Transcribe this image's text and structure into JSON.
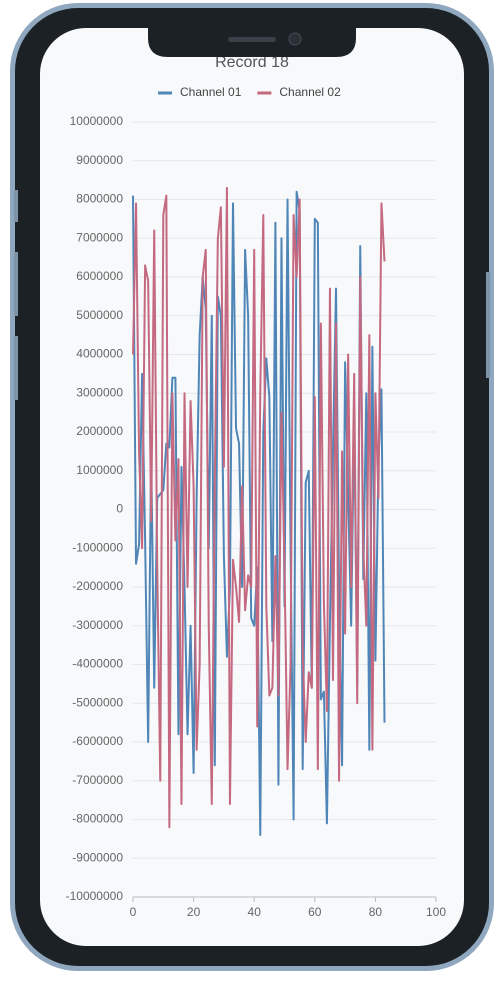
{
  "chart_data": {
    "type": "line",
    "title": "Record 18",
    "x": [
      0,
      1,
      2,
      3,
      4,
      5,
      6,
      7,
      8,
      9,
      10,
      11,
      12,
      13,
      14,
      15,
      16,
      17,
      18,
      19,
      20,
      21,
      22,
      23,
      24,
      25,
      26,
      27,
      28,
      29,
      30,
      31,
      32,
      33,
      34,
      35,
      36,
      37,
      38,
      39,
      40,
      41,
      42,
      43,
      44,
      45,
      46,
      47,
      48,
      49,
      50,
      51,
      52,
      53,
      54,
      55,
      56,
      57,
      58,
      59,
      60,
      61,
      62,
      63,
      64,
      65,
      66,
      67,
      68,
      69,
      70,
      71,
      72,
      73,
      74,
      75,
      76,
      77,
      78,
      79,
      80,
      81,
      82,
      83
    ],
    "series": [
      {
        "name": "Channel 01",
        "color": "#4f86b7",
        "values": [
          8100000,
          -1400000,
          -900000,
          3500000,
          -800000,
          -6000000,
          1500000,
          -4600000,
          300000,
          400000,
          500000,
          1700000,
          1600000,
          3400000,
          3400000,
          -5800000,
          1100000,
          -2000000,
          -5800000,
          -3000000,
          -6800000,
          300000,
          4500000,
          6000000,
          5200000,
          -1000000,
          5000000,
          -6600000,
          5500000,
          5000000,
          -1200000,
          -3800000,
          -2000000,
          7900000,
          2100000,
          1700000,
          -2000000,
          6700000,
          5000000,
          -2800000,
          -3000000,
          -1500000,
          -8400000,
          2000000,
          3900000,
          2900000,
          -3400000,
          7400000,
          -7100000,
          7000000,
          -2500000,
          8000000,
          -1000000,
          -8000000,
          8200000,
          7700000,
          -6700000,
          700000,
          1000000,
          -4600000,
          7500000,
          7400000,
          -4900000,
          -4700000,
          -8100000,
          -2900000,
          1500000,
          5700000,
          -2000000,
          -6600000,
          3800000,
          400000,
          -3000000,
          2500000,
          -4500000,
          6800000,
          -1800000,
          3000000,
          -6200000,
          4200000,
          -3900000,
          1200000,
          3100000,
          -5500000
        ]
      },
      {
        "name": "Channel 02",
        "color": "#c4697f",
        "values": [
          4000000,
          7900000,
          1500000,
          -1000000,
          6300000,
          5900000,
          -300000,
          7200000,
          -1500000,
          -7000000,
          7600000,
          8100000,
          -8200000,
          3000000,
          -800000,
          1300000,
          -7600000,
          3000000,
          -2000000,
          2800000,
          600000,
          -6200000,
          -4000000,
          6000000,
          6700000,
          -3000000,
          -7600000,
          800000,
          7000000,
          7800000,
          1100000,
          8300000,
          -7600000,
          -1300000,
          -2000000,
          -2900000,
          600000,
          -2600000,
          -1700000,
          -2000000,
          6700000,
          -5600000,
          3000000,
          7600000,
          -2500000,
          -4800000,
          -4600000,
          -1200000,
          -4800000,
          2500000,
          -1500000,
          -6700000,
          -4000000,
          7600000,
          6000000,
          8000000,
          -3700000,
          -6000000,
          -4200000,
          -4600000,
          2900000,
          -6700000,
          4800000,
          -2400000,
          -5200000,
          5700000,
          -4400000,
          4800000,
          -7000000,
          1500000,
          -3200000,
          4000000,
          -2000000,
          3500000,
          -5000000,
          6000000,
          -1000000,
          -3000000,
          4500000,
          -6200000,
          3000000,
          300000,
          7900000,
          6400000
        ]
      }
    ],
    "xlim": [
      0,
      100
    ],
    "xticks": [
      0,
      20,
      40,
      60,
      80,
      100
    ],
    "ylim": [
      -10000000,
      10000000
    ],
    "yticks": [
      -10000000,
      -9000000,
      -8000000,
      -7000000,
      -6000000,
      -5000000,
      -4000000,
      -3000000,
      -2000000,
      -1000000,
      0,
      1000000,
      2000000,
      3000000,
      4000000,
      5000000,
      6000000,
      7000000,
      8000000,
      9000000,
      10000000
    ],
    "grid": true,
    "legend": "top"
  }
}
